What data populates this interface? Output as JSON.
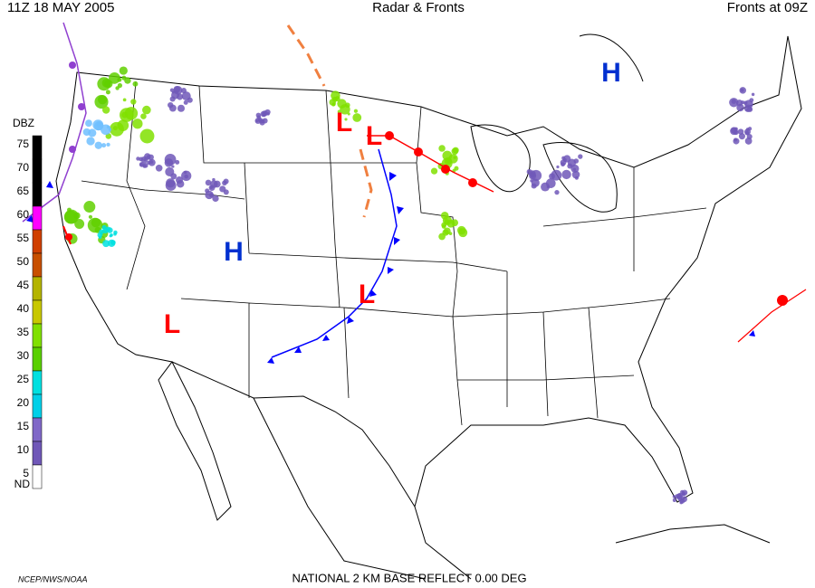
{
  "header": {
    "left": "11Z  18 MAY  2005",
    "center": "Radar & Fronts",
    "right": "Fronts at 09Z"
  },
  "dbz_scale": {
    "title": "DBZ",
    "levels": [
      75,
      70,
      65,
      60,
      55,
      50,
      45,
      40,
      35,
      30,
      25,
      20,
      15,
      10,
      5
    ],
    "nd_label": "ND",
    "colors": [
      "#000000",
      "#000000",
      "#000000",
      "#ff00ff",
      "#d04000",
      "#c85000",
      "#b4b400",
      "#c8c800",
      "#80e000",
      "#5ad000",
      "#00e0e0",
      "#00d0e8",
      "#8068c8",
      "#7058b8",
      "#ffffff"
    ]
  },
  "pressure_centers": [
    {
      "label": "H",
      "color": "#0030d0"
    },
    {
      "label": "H",
      "color": "#0030d0"
    },
    {
      "label": "L",
      "color": "#ff0000"
    },
    {
      "label": "L",
      "color": "#ff0000"
    },
    {
      "label": "L",
      "color": "#ff0000"
    },
    {
      "label": "L",
      "color": "#ff0000"
    }
  ],
  "footer": {
    "source": "NCEP/NWS/NOAA",
    "product": "NATIONAL 2 KM BASE REFLECT 0.00 DEG"
  }
}
